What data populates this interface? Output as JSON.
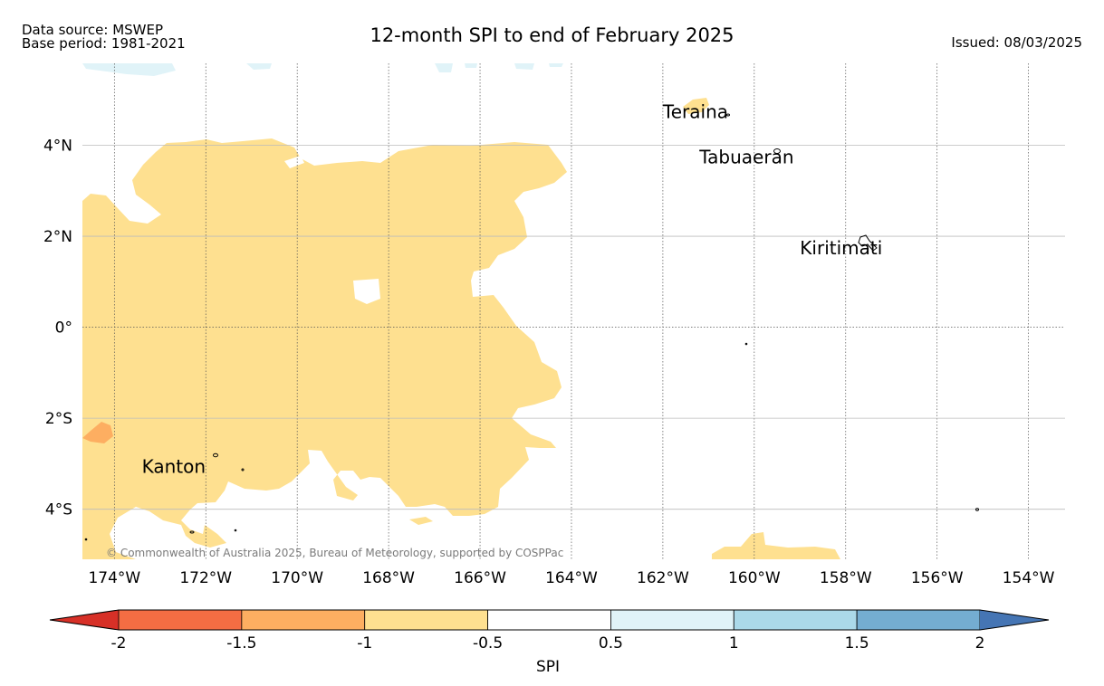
{
  "header": {
    "data_source": "Data source: MSWEP",
    "base_period": "Base period: 1981-2021",
    "title": "12-month SPI to end of February 2025",
    "issued": "Issued: 08/03/2025"
  },
  "map": {
    "lon_range": [
      -174.7,
      -153.2
    ],
    "lat_range": [
      -5.1,
      5.8
    ],
    "lon_ticks": [
      {
        "value": -174,
        "label": "174°W"
      },
      {
        "value": -172,
        "label": "172°W"
      },
      {
        "value": -170,
        "label": "170°W"
      },
      {
        "value": -168,
        "label": "168°W"
      },
      {
        "value": -166,
        "label": "166°W"
      },
      {
        "value": -164,
        "label": "164°W"
      },
      {
        "value": -162,
        "label": "162°W"
      },
      {
        "value": -160,
        "label": "160°W"
      },
      {
        "value": -158,
        "label": "158°W"
      },
      {
        "value": -156,
        "label": "156°W"
      },
      {
        "value": -154,
        "label": "154°W"
      }
    ],
    "lat_ticks": [
      {
        "value": 4,
        "label": "4°N"
      },
      {
        "value": 2,
        "label": "2°N"
      },
      {
        "value": 0,
        "label": "0°"
      },
      {
        "value": -2,
        "label": "2°S"
      },
      {
        "value": -4,
        "label": "4°S"
      }
    ],
    "places": [
      {
        "name": "Teraina",
        "lon": -162.0,
        "lat": 4.6
      },
      {
        "name": "Tabuaeran",
        "lon": -161.2,
        "lat": 3.6
      },
      {
        "name": "Kiritimati",
        "lon": -159.0,
        "lat": 1.6
      },
      {
        "name": "Kanton",
        "lon": -173.4,
        "lat": -3.2
      }
    ],
    "copyright": "© Commonwealth of Australia 2025, Bureau of Meteorology, supported by COSPPac",
    "colors": {
      "dry_moderate": "#fee090",
      "dry_severe": "#fdae61",
      "wet_mild": "#e0f3f8",
      "grid": "#bbbbbb",
      "coast": "#000000"
    }
  },
  "colorbar": {
    "label": "SPI",
    "tick_labels": [
      "-2",
      "-1.5",
      "-1",
      "-0.5",
      "0.5",
      "1",
      "1.5",
      "2"
    ],
    "colors": [
      "#d73027",
      "#f46d43",
      "#fdae61",
      "#fee090",
      "#ffffff",
      "#e0f3f8",
      "#abd9e9",
      "#74add1",
      "#4575b4"
    ]
  }
}
